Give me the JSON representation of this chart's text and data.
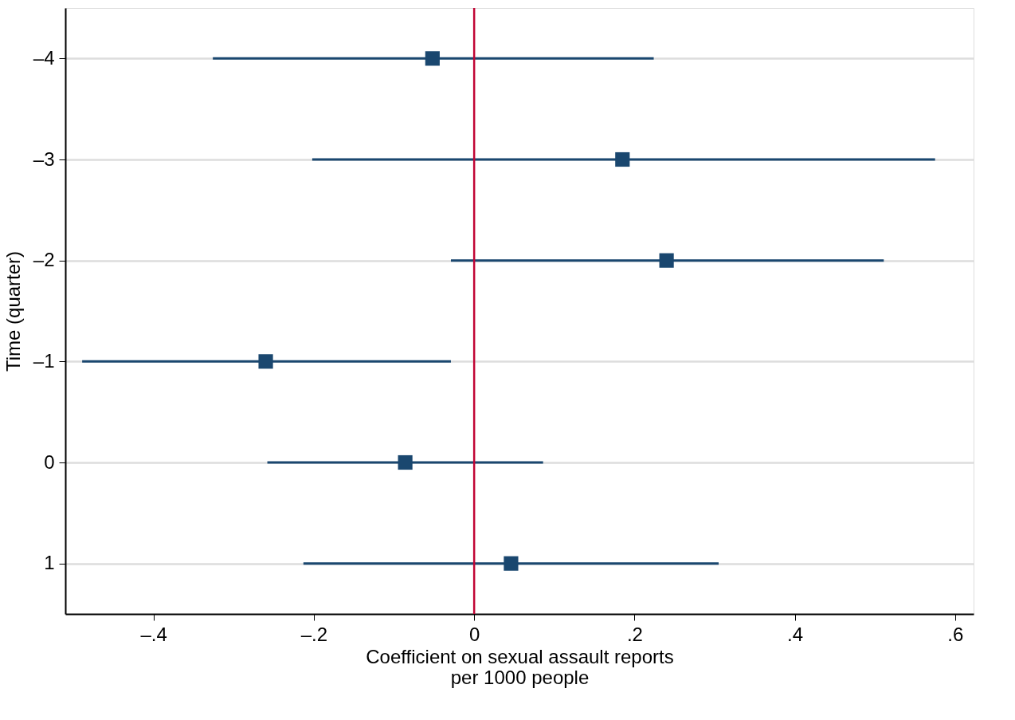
{
  "chart_data": {
    "type": "scatter",
    "orientation": "horizontal",
    "xlabel": "Coefficient on sexual assault reports\nper 1000 people",
    "ylabel": "Time (quarter)",
    "categories": [
      "–4",
      "–3",
      "–2",
      "–1",
      "0",
      "1"
    ],
    "series": [
      {
        "color": "#1a476f",
        "values": [
          -0.052,
          0.185,
          0.24,
          -0.26,
          -0.086,
          0.046
        ],
        "errors": [
          [
            -0.326,
            0.224
          ],
          [
            -0.202,
            0.575
          ],
          [
            -0.029,
            0.511
          ],
          [
            -0.489,
            -0.029
          ],
          [
            -0.258,
            0.086
          ],
          [
            -0.213,
            0.305
          ]
        ]
      }
    ],
    "xlim": [
      -0.51,
      0.623
    ],
    "xticks": [
      {
        "value": -0.4,
        "label": "–.4"
      },
      {
        "value": -0.2,
        "label": "–.2"
      },
      0,
      {
        "value": 0.2,
        "label": ".2"
      },
      {
        "value": 0.4,
        "label": ".4"
      },
      {
        "value": 0.6,
        "label": ".6"
      }
    ],
    "ref_lines": [
      {
        "axis": "x",
        "value": 0,
        "color": "#c10534"
      }
    ],
    "grid": "y",
    "marker": "square"
  }
}
